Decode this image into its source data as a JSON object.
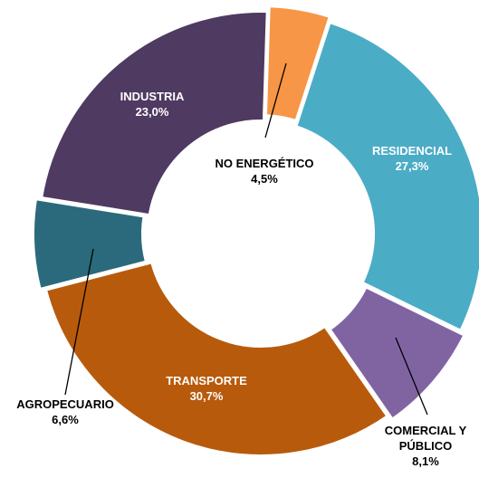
{
  "chart_data": {
    "type": "donut",
    "categories": [
      "NO ENERGÉTICO",
      "RESIDENCIAL",
      "COMERCIAL Y PÚBLICO",
      "TRANSPORTE",
      "AGROPECUARIO",
      "INDUSTRIA"
    ],
    "values": [
      4.5,
      27.3,
      8.1,
      30.7,
      6.6,
      23.0
    ],
    "value_labels": [
      "4,5%",
      "27,3%",
      "8,1%",
      "30,7%",
      "6,6%",
      "23,0%"
    ],
    "colors": [
      "#f79646",
      "#4bacc6",
      "#8064a2",
      "#b85a0c",
      "#2b6a7c",
      "#4f3a62"
    ]
  }
}
